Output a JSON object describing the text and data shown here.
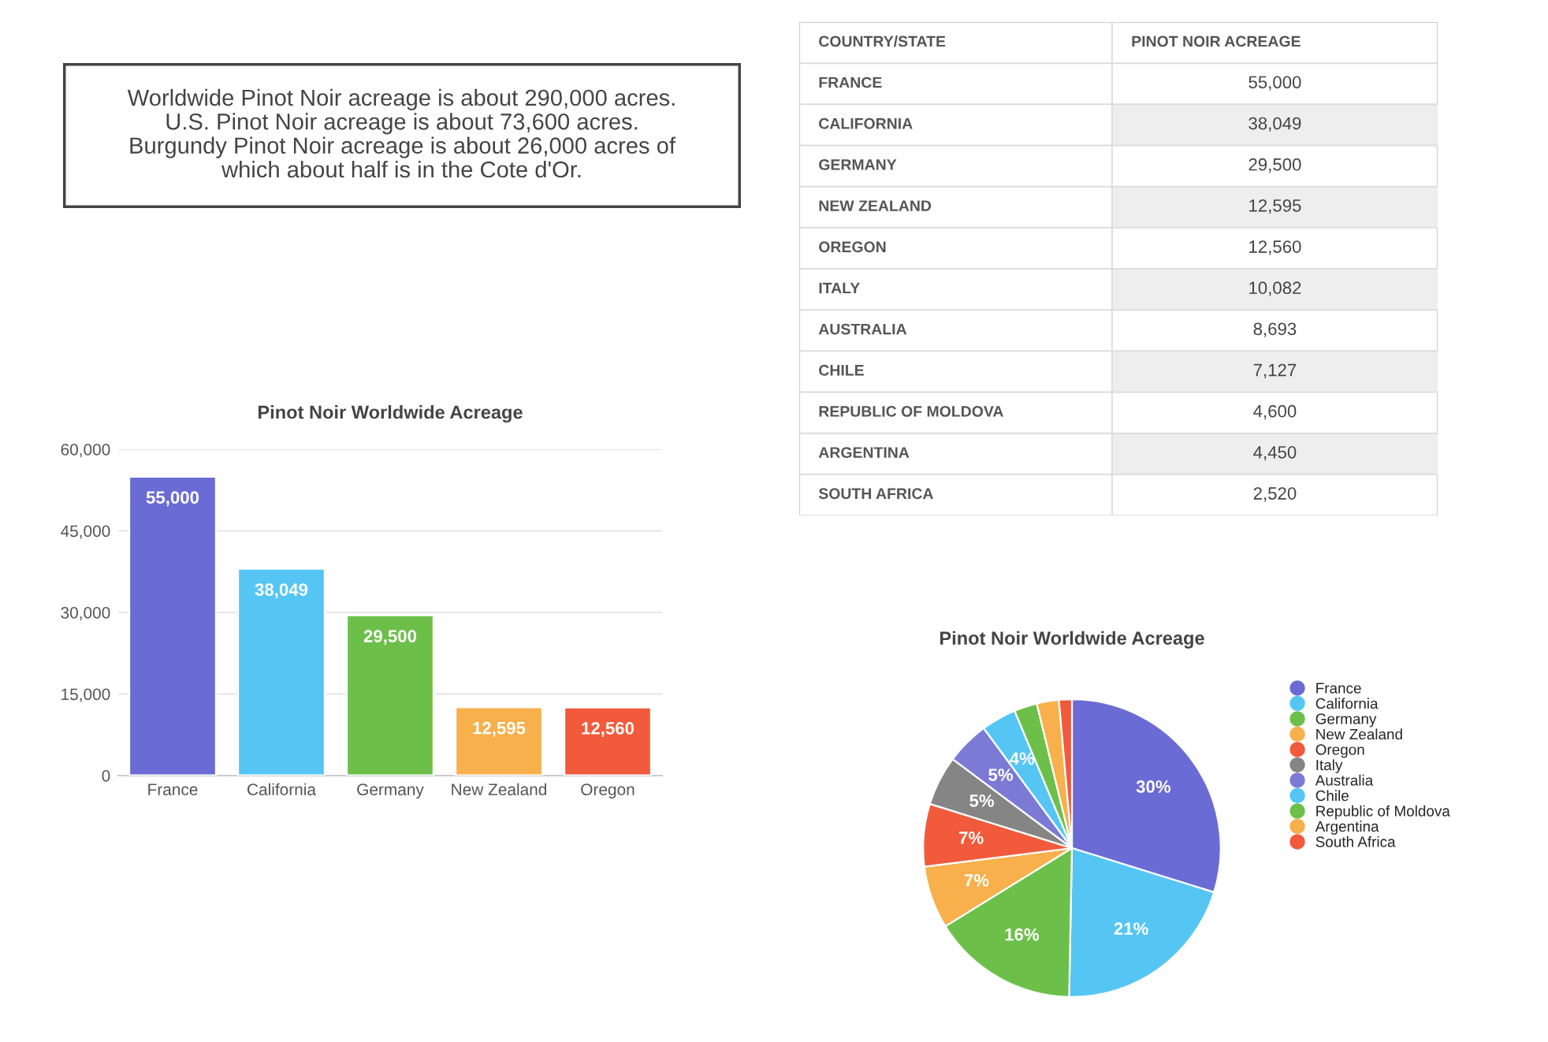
{
  "chart_data": [
    {
      "type": "other",
      "annotations": [
        "Worldwide Pinot Noir acreage is about 290,000 acres.\nU.S. Pinot Noir acreage is about 73,600 acres.\nBurgundy Pinot Noir acreage is about 26,000 acres of\nwhich about half is in the Cote d'Or."
      ]
    },
    {
      "type": "other",
      "xlabel": "COUNTRY/STATE",
      "ylabel": "PINOT NOIR ACREAGE",
      "categories": [
        "FRANCE",
        "CALIFORNIA",
        "GERMANY",
        "NEW ZEALAND",
        "OREGON",
        "ITALY",
        "AUSTRALIA",
        "CHILE",
        "REPUBLIC OF MOLDOVA",
        "ARGENTINA",
        "SOUTH AFRICA"
      ],
      "value_labels": [
        "55,000",
        "38,049",
        "29,500",
        "12,595",
        "12,560",
        "10,082",
        "8,693",
        "7,127",
        "4,600",
        "4,450",
        "2,520"
      ]
    },
    {
      "type": "bar",
      "title": "Pinot Noir Worldwide Acreage",
      "categories": [
        "France",
        "California",
        "Germany",
        "New Zealand",
        "Oregon"
      ],
      "values": [
        55000,
        38049,
        29500,
        12595,
        12560
      ],
      "colors": [
        "#6b6bd6",
        "#55c6f4",
        "#6cc04a",
        "#f7b04c",
        "#f25a3c"
      ],
      "value_labels": [
        "55,000",
        "38,049",
        "29,500",
        "12,595",
        "12,560"
      ],
      "ylim": [
        0,
        60000
      ],
      "yticks": [
        {
          "value": 0,
          "label": "0"
        },
        {
          "value": 15000,
          "label": "15,000"
        },
        {
          "value": 30000,
          "label": "30,000"
        },
        {
          "value": 45000,
          "label": "45,000"
        },
        {
          "value": 60000,
          "label": "60,000"
        }
      ],
      "grid": "y"
    },
    {
      "type": "pie",
      "title": "Pinot Noir Worldwide Acreage",
      "categories": [
        "France",
        "California",
        "Germany",
        "New Zealand",
        "Oregon",
        "Italy",
        "Australia",
        "Chile",
        "Republic of Moldova",
        "Argentina",
        "South Africa"
      ],
      "values": [
        29.8,
        20.5,
        15.9,
        6.8,
        6.8,
        5.4,
        4.7,
        3.8,
        2.5,
        2.4,
        1.4
      ],
      "colors": [
        "#6b6bd6",
        "#55c6f4",
        "#6cc04a",
        "#f7b04c",
        "#f25a3c",
        "#858585",
        "#7b7bd6",
        "#55c6f4",
        "#6cc04a",
        "#f7b04c",
        "#f25a3c"
      ],
      "value_labels": [
        "30%",
        "21%",
        "16%",
        "7%",
        "7%",
        "5%",
        "5%",
        "4%",
        null,
        null,
        null
      ],
      "legend": "right"
    }
  ]
}
